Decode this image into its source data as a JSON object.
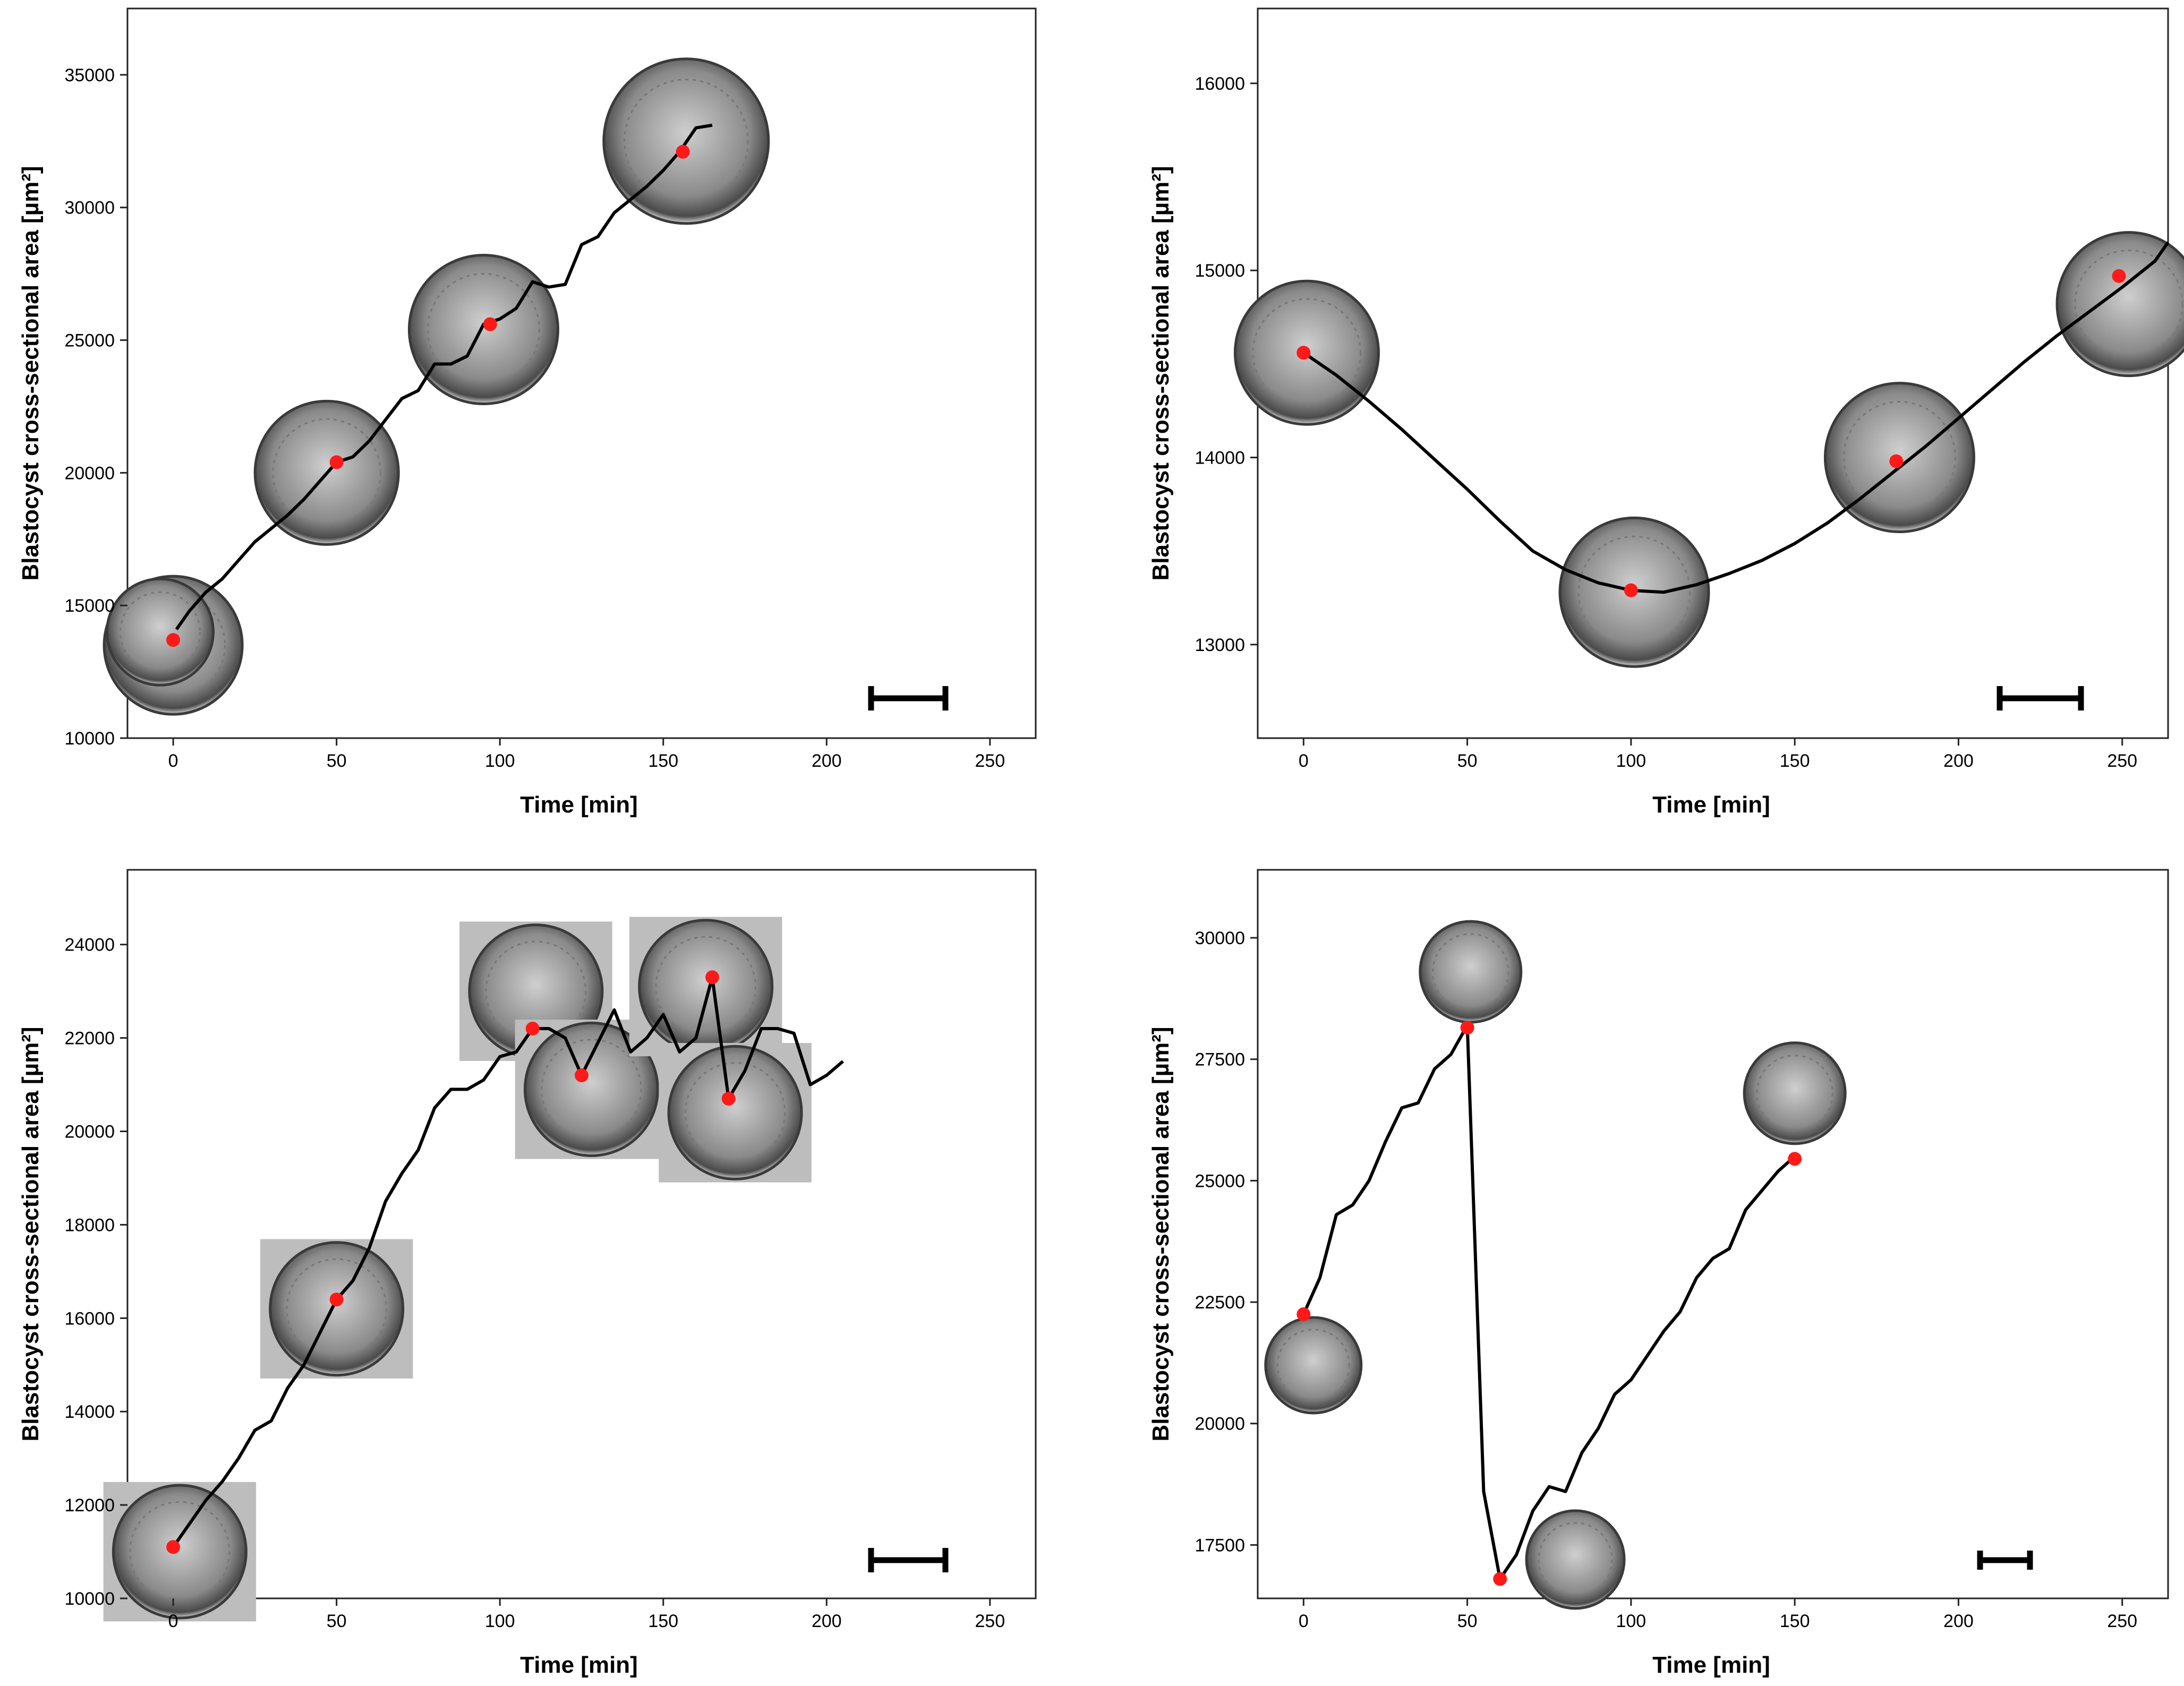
{
  "chart_data": [
    {
      "type": "line",
      "xlabel": "Time [min]",
      "ylabel": "Blastocyst cross-sectional area [µm²]",
      "xlim": [
        -14,
        264
      ],
      "ylim": [
        10000,
        37500
      ],
      "x_ticks": [
        0,
        50,
        100,
        150,
        200,
        250
      ],
      "y_ticks": [
        10000,
        15000,
        20000,
        25000,
        30000,
        35000
      ],
      "series": [
        {
          "name": "area",
          "x": [
            1,
            5,
            10,
            15,
            20,
            25,
            30,
            35,
            40,
            45,
            50,
            55,
            60,
            65,
            70,
            75,
            80,
            85,
            90,
            95,
            100,
            105,
            110,
            115,
            120,
            125,
            130,
            135,
            140,
            145,
            150,
            155,
            160,
            165
          ],
          "y": [
            14100,
            14800,
            15500,
            16000,
            16700,
            17400,
            17900,
            18400,
            19000,
            19700,
            20400,
            20600,
            21200,
            22000,
            22800,
            23100,
            24100,
            24100,
            24400,
            25600,
            25800,
            26200,
            27200,
            27000,
            27100,
            28600,
            28900,
            29800,
            30300,
            30800,
            31400,
            32100,
            33000,
            33100
          ]
        }
      ],
      "highlight_points": [
        {
          "x": 0,
          "y": 13700
        },
        {
          "x": 50,
          "y": 20400
        },
        {
          "x": 97,
          "y": 25600
        },
        {
          "x": 156,
          "y": 32100
        }
      ],
      "scale_bar": true
    },
    {
      "type": "line",
      "xlabel": "Time [min]",
      "ylabel": "Blastocyst cross-sectional area [µm²]",
      "xlim": [
        -14,
        264
      ],
      "ylim": [
        12500,
        16400
      ],
      "x_ticks": [
        0,
        50,
        100,
        150,
        200,
        250
      ],
      "y_ticks": [
        13000,
        14000,
        15000,
        16000
      ],
      "series": [
        {
          "name": "area",
          "x": [
            0,
            10,
            20,
            30,
            40,
            50,
            60,
            70,
            80,
            90,
            100,
            110,
            120,
            130,
            140,
            150,
            160,
            170,
            180,
            190,
            200,
            210,
            220,
            230,
            240,
            250,
            260,
            264
          ],
          "y": [
            14560,
            14440,
            14300,
            14150,
            13990,
            13830,
            13660,
            13500,
            13400,
            13330,
            13290,
            13280,
            13320,
            13380,
            13450,
            13540,
            13650,
            13780,
            13920,
            14060,
            14210,
            14360,
            14510,
            14650,
            14780,
            14910,
            15050,
            15150
          ]
        }
      ],
      "highlight_points": [
        {
          "x": 0,
          "y": 14560
        },
        {
          "x": 100,
          "y": 13290
        },
        {
          "x": 181,
          "y": 13980
        },
        {
          "x": 249,
          "y": 14970
        }
      ],
      "scale_bar": true
    },
    {
      "type": "line",
      "xlabel": "Time [min]",
      "ylabel": "Blastocyst cross-sectional area [µm²]",
      "xlim": [
        -14,
        264
      ],
      "ylim": [
        10000,
        25600
      ],
      "x_ticks": [
        0,
        50,
        100,
        150,
        200,
        250
      ],
      "y_ticks": [
        10000,
        12000,
        14000,
        16000,
        18000,
        20000,
        22000,
        24000
      ],
      "series": [
        {
          "name": "area",
          "x": [
            0,
            5,
            10,
            15,
            20,
            25,
            30,
            35,
            40,
            45,
            50,
            55,
            60,
            65,
            70,
            75,
            80,
            85,
            90,
            95,
            100,
            105,
            110,
            115,
            120,
            125,
            130,
            135,
            140,
            145,
            150,
            155,
            160,
            165,
            170,
            175,
            180,
            185,
            190,
            195,
            200,
            205
          ],
          "y": [
            11100,
            11600,
            12100,
            12500,
            13000,
            13600,
            13800,
            14500,
            15000,
            15700,
            16400,
            16800,
            17500,
            18500,
            19100,
            19600,
            20500,
            20900,
            20900,
            21100,
            21600,
            21700,
            22200,
            22200,
            22000,
            21200,
            21900,
            22600,
            21700,
            22000,
            22500,
            21700,
            22000,
            23300,
            20700,
            21300,
            22200,
            22200,
            22100,
            21000,
            21200,
            21500
          ]
        }
      ],
      "highlight_points": [
        {
          "x": 0,
          "y": 11100
        },
        {
          "x": 50,
          "y": 16400
        },
        {
          "x": 110,
          "y": 22200
        },
        {
          "x": 125,
          "y": 21200
        },
        {
          "x": 165,
          "y": 23300
        },
        {
          "x": 170,
          "y": 20700
        }
      ],
      "scale_bar": true
    },
    {
      "type": "line",
      "xlabel": "Time [min]",
      "ylabel": "Blastocyst cross-sectional area [µm²]",
      "xlim": [
        -14,
        264
      ],
      "ylim": [
        16400,
        31400
      ],
      "x_ticks": [
        0,
        50,
        100,
        150,
        200,
        250
      ],
      "y_ticks": [
        17500,
        20000,
        22500,
        25000,
        27500,
        30000
      ],
      "series": [
        {
          "name": "area",
          "x": [
            0,
            5,
            10,
            15,
            20,
            25,
            30,
            35,
            40,
            45,
            50,
            55,
            60,
            65,
            70,
            75,
            80,
            85,
            90,
            95,
            100,
            105,
            110,
            115,
            120,
            125,
            130,
            135,
            140,
            145,
            150
          ],
          "y": [
            22250,
            23000,
            24300,
            24500,
            25000,
            25800,
            26500,
            26600,
            27300,
            27600,
            28200,
            18600,
            16800,
            17300,
            18200,
            18700,
            18600,
            19400,
            19900,
            20600,
            20900,
            21400,
            21900,
            22300,
            23000,
            23400,
            23600,
            24400,
            24800,
            25200,
            25500
          ]
        }
      ],
      "highlight_points": [
        {
          "x": 0,
          "y": 22250
        },
        {
          "x": 50,
          "y": 28150
        },
        {
          "x": 60,
          "y": 16800
        },
        {
          "x": 150,
          "y": 25450
        }
      ],
      "scale_bar": true
    }
  ]
}
